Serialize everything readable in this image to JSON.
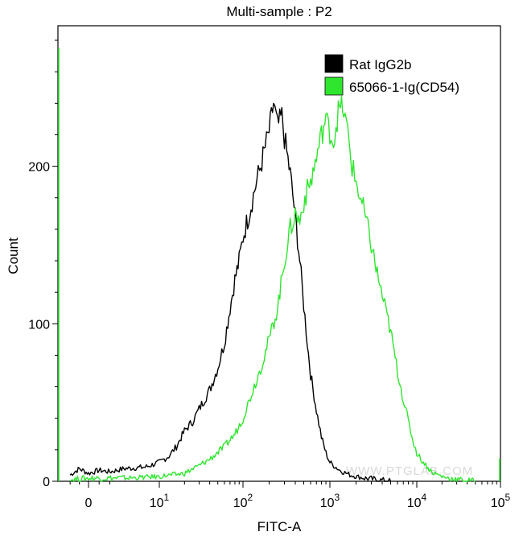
{
  "chart_data": {
    "type": "line",
    "title": "Multi-sample : P2",
    "xlabel": "FITC-A",
    "ylabel": "Count",
    "x_scale": "biexponential-log",
    "x_ticks": [
      {
        "value": 0,
        "label": "0",
        "exp": ""
      },
      {
        "value": 10,
        "label": "10",
        "exp": "1"
      },
      {
        "value": 100,
        "label": "10",
        "exp": "2"
      },
      {
        "value": 1000,
        "label": "10",
        "exp": "3"
      },
      {
        "value": 10000,
        "label": "10",
        "exp": "4"
      },
      {
        "value": 100000,
        "label": "10",
        "exp": "5"
      }
    ],
    "ylim": [
      0,
      290
    ],
    "y_ticks": [
      0,
      100,
      200
    ],
    "grid": false,
    "legend_position": "top-right",
    "series": [
      {
        "name": "Rat IgG2b",
        "color": "#000000",
        "points": [
          [
            -3,
            4
          ],
          [
            -1.5,
            8
          ],
          [
            0,
            5
          ],
          [
            1.5,
            7
          ],
          [
            3,
            6
          ],
          [
            5,
            8
          ],
          [
            8,
            9
          ],
          [
            10,
            12
          ],
          [
            13,
            16
          ],
          [
            16,
            22
          ],
          [
            20,
            32
          ],
          [
            25,
            38
          ],
          [
            30,
            46
          ],
          [
            40,
            58
          ],
          [
            50,
            72
          ],
          [
            60,
            88
          ],
          [
            70,
            110
          ],
          [
            80,
            128
          ],
          [
            90,
            140
          ],
          [
            100,
            155
          ],
          [
            120,
            172
          ],
          [
            140,
            188
          ],
          [
            160,
            200
          ],
          [
            180,
            212
          ],
          [
            200,
            222
          ],
          [
            225,
            240
          ],
          [
            250,
            225
          ],
          [
            280,
            232
          ],
          [
            300,
            218
          ],
          [
            350,
            195
          ],
          [
            400,
            168
          ],
          [
            450,
            140
          ],
          [
            500,
            112
          ],
          [
            550,
            88
          ],
          [
            600,
            68
          ],
          [
            700,
            45
          ],
          [
            800,
            28
          ],
          [
            900,
            18
          ],
          [
            1000,
            12
          ],
          [
            1300,
            7
          ],
          [
            1700,
            4
          ],
          [
            2500,
            2
          ],
          [
            3500,
            1
          ],
          [
            5000,
            0
          ]
        ]
      },
      {
        "name": "65066-1-Ig(CD54)",
        "color": "#2ee62e",
        "points": [
          [
            -3,
            1
          ],
          [
            0,
            2
          ],
          [
            5,
            2
          ],
          [
            10,
            3
          ],
          [
            20,
            5
          ],
          [
            30,
            10
          ],
          [
            40,
            14
          ],
          [
            60,
            22
          ],
          [
            80,
            30
          ],
          [
            100,
            40
          ],
          [
            130,
            58
          ],
          [
            160,
            72
          ],
          [
            200,
            90
          ],
          [
            250,
            110
          ],
          [
            300,
            140
          ],
          [
            350,
            160
          ],
          [
            400,
            170
          ],
          [
            450,
            165
          ],
          [
            500,
            178
          ],
          [
            600,
            190
          ],
          [
            700,
            205
          ],
          [
            800,
            220
          ],
          [
            900,
            230
          ],
          [
            1000,
            222
          ],
          [
            1100,
            215
          ],
          [
            1250,
            235
          ],
          [
            1400,
            238
          ],
          [
            1600,
            222
          ],
          [
            1800,
            200
          ],
          [
            2000,
            190
          ],
          [
            2500,
            170
          ],
          [
            3000,
            150
          ],
          [
            3500,
            132
          ],
          [
            4000,
            118
          ],
          [
            5000,
            95
          ],
          [
            6000,
            70
          ],
          [
            7000,
            52
          ],
          [
            8000,
            38
          ],
          [
            9000,
            26
          ],
          [
            10000,
            18
          ],
          [
            12000,
            12
          ],
          [
            15000,
            6
          ],
          [
            20000,
            3
          ],
          [
            30000,
            1
          ],
          [
            50000,
            0
          ]
        ]
      }
    ],
    "watermark": "WWW.PTGLAB.COM"
  }
}
